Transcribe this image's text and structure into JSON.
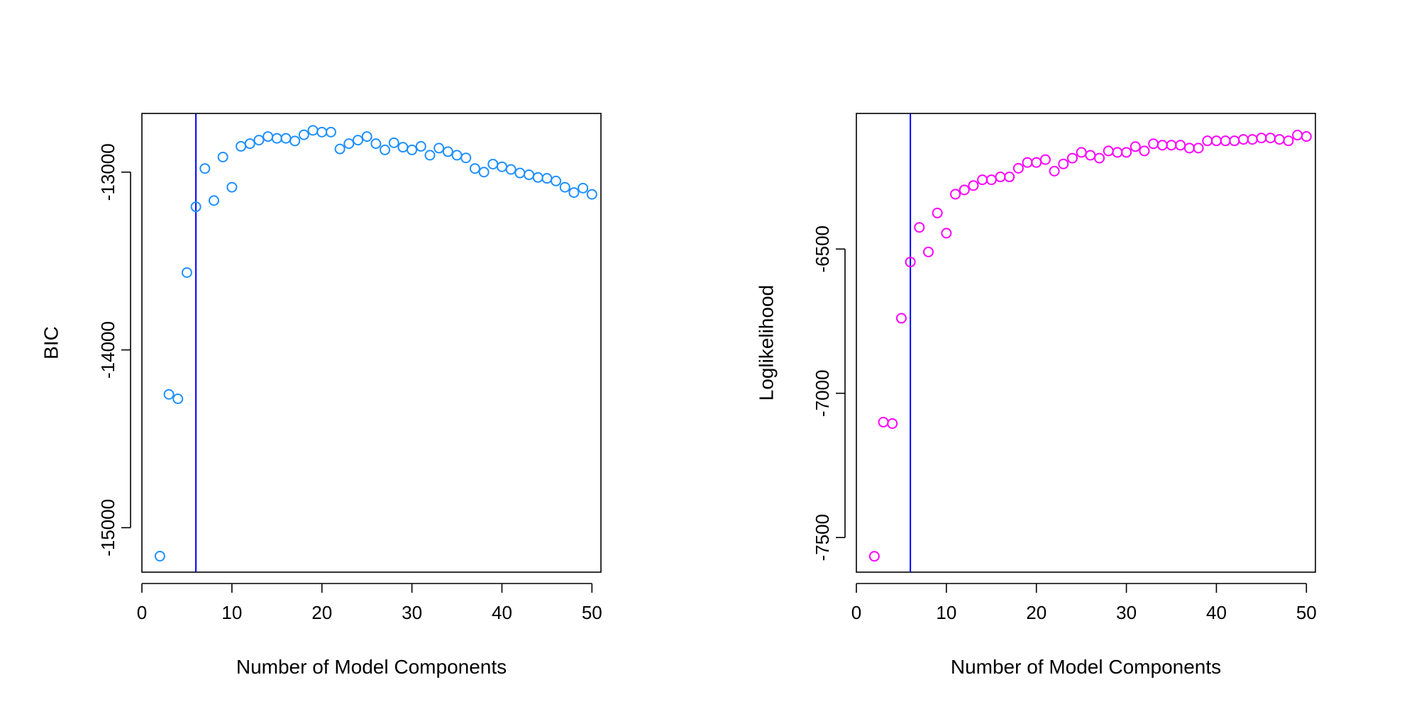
{
  "chart_data": [
    {
      "type": "scatter",
      "xlabel": "Number of Model Components",
      "ylabel": "BIC",
      "xlim": [
        0,
        51
      ],
      "ylim": [
        -15250,
        -12670
      ],
      "xticks": [
        0,
        10,
        20,
        30,
        40,
        50
      ],
      "yticks": [
        -15000,
        -14000,
        -13000
      ],
      "grid": false,
      "marker": "open-circle",
      "color": "#1E90FF",
      "vline": {
        "x": 6,
        "color": "#0000FF"
      },
      "series": [
        {
          "x": [
            2,
            3,
            4,
            5,
            6,
            7,
            8,
            9,
            10,
            11,
            12,
            13,
            14,
            15,
            16,
            17,
            18,
            19,
            20,
            21,
            22,
            23,
            24,
            25,
            26,
            27,
            28,
            29,
            30,
            31,
            32,
            33,
            34,
            35,
            36,
            37,
            38,
            39,
            40,
            41,
            42,
            43,
            44,
            45,
            46,
            47,
            48,
            49,
            50
          ],
          "y": [
            -15160,
            -14250,
            -14275,
            -13565,
            -13195,
            -12980,
            -13160,
            -12915,
            -13085,
            -12855,
            -12840,
            -12820,
            -12800,
            -12810,
            -12810,
            -12825,
            -12790,
            -12765,
            -12775,
            -12775,
            -12870,
            -12840,
            -12820,
            -12800,
            -12840,
            -12875,
            -12835,
            -12860,
            -12875,
            -12855,
            -12905,
            -12865,
            -12885,
            -12905,
            -12920,
            -12980,
            -13000,
            -12955,
            -12970,
            -12985,
            -13005,
            -13015,
            -13030,
            -13035,
            -13050,
            -13085,
            -13115,
            -13090,
            -13125
          ]
        }
      ]
    },
    {
      "type": "scatter",
      "xlabel": "Number of Model Components",
      "ylabel": "Loglikelihood",
      "xlim": [
        0,
        51
      ],
      "ylim": [
        -7620,
        -6030
      ],
      "xticks": [
        0,
        10,
        20,
        30,
        40,
        50
      ],
      "yticks": [
        -7500,
        -7000,
        -6500
      ],
      "grid": false,
      "marker": "open-circle",
      "color": "#FF00FF",
      "vline": {
        "x": 6,
        "color": "#0000FF"
      },
      "series": [
        {
          "x": [
            2,
            3,
            4,
            5,
            6,
            7,
            8,
            9,
            10,
            11,
            12,
            13,
            14,
            15,
            16,
            17,
            18,
            19,
            20,
            21,
            22,
            23,
            24,
            25,
            26,
            27,
            28,
            29,
            30,
            31,
            32,
            33,
            34,
            35,
            36,
            37,
            38,
            39,
            40,
            41,
            42,
            43,
            44,
            45,
            46,
            47,
            48,
            49,
            50
          ],
          "y": [
            -7565,
            -7100,
            -7105,
            -6740,
            -6545,
            -6425,
            -6510,
            -6375,
            -6445,
            -6310,
            -6295,
            -6280,
            -6260,
            -6260,
            -6250,
            -6250,
            -6220,
            -6200,
            -6200,
            -6190,
            -6230,
            -6205,
            -6185,
            -6165,
            -6175,
            -6185,
            -6160,
            -6165,
            -6165,
            -6145,
            -6160,
            -6135,
            -6140,
            -6140,
            -6140,
            -6150,
            -6150,
            -6125,
            -6125,
            -6125,
            -6125,
            -6120,
            -6120,
            -6115,
            -6115,
            -6120,
            -6125,
            -6105,
            -6110
          ]
        }
      ]
    }
  ]
}
